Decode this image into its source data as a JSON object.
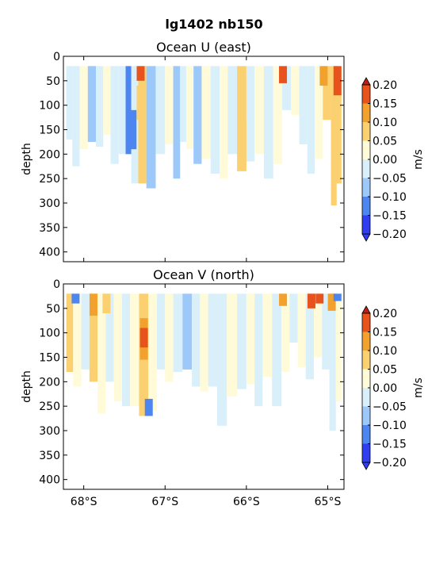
{
  "suptitle": "lg1402 nb150",
  "chart_data": [
    {
      "type": "heatmap",
      "title": "Ocean U (east)",
      "ylabel": "depth",
      "xlabel": "",
      "x_ticks": [
        -68,
        -67,
        -66,
        -65
      ],
      "x_tick_labels": [
        "68°S",
        "67°S",
        "66°S",
        "65°S"
      ],
      "y_ticks": [
        0,
        50,
        100,
        150,
        200,
        250,
        300,
        350,
        400
      ],
      "y_tick_labels": [
        "0",
        "50",
        "100",
        "150",
        "200",
        "250",
        "300",
        "350",
        "400"
      ],
      "xlim": [
        -68.25,
        -64.8
      ],
      "ylim": [
        420,
        0
      ],
      "colorbar": {
        "label": "m/s",
        "levels": [
          -0.2,
          -0.15,
          -0.1,
          -0.05,
          0.0,
          0.05,
          0.1,
          0.15,
          0.2
        ],
        "tick_labels": [
          "−0.20",
          "−0.15",
          "−0.10",
          "−0.05",
          "0.00",
          "0.05",
          "0.10",
          "0.15",
          "0.20"
        ],
        "colors": [
          "#2e3ef0",
          "#4d86f0",
          "#9cc8fa",
          "#d9f0fb",
          "#fffbd8",
          "#fbd070",
          "#f3a12e",
          "#e8521c",
          "#c01e10"
        ]
      },
      "columns": [
        {
          "lat": -68.18,
          "top": 20,
          "bottom": 170,
          "value": -0.03
        },
        {
          "lat": -68.1,
          "top": 20,
          "bottom": 225,
          "value": -0.04
        },
        {
          "lat": -68.0,
          "top": 20,
          "bottom": 190,
          "value": 0.02
        },
        {
          "lat": -67.9,
          "top": 20,
          "bottom": 175,
          "value": -0.07
        },
        {
          "lat": -67.8,
          "top": 20,
          "bottom": 185,
          "value": -0.04
        },
        {
          "lat": -67.72,
          "top": 20,
          "bottom": 160,
          "value": 0.03
        },
        {
          "lat": -67.62,
          "top": 20,
          "bottom": 220,
          "value": -0.03
        },
        {
          "lat": -67.52,
          "top": 20,
          "bottom": 200,
          "value": -0.04
        },
        {
          "lat": -67.45,
          "top": 20,
          "bottom": 200,
          "value": -0.13
        },
        {
          "lat": -67.38,
          "top": 20,
          "bottom": 260,
          "value": -0.04
        },
        {
          "lat": -67.28,
          "top": 20,
          "bottom": 260,
          "value": 0.06
        },
        {
          "lat": -67.18,
          "top": 20,
          "bottom": 270,
          "value": -0.07
        },
        {
          "lat": -67.05,
          "top": 20,
          "bottom": 200,
          "value": -0.03
        },
        {
          "lat": -66.95,
          "top": 20,
          "bottom": 180,
          "value": 0.02
        },
        {
          "lat": -66.85,
          "top": 20,
          "bottom": 250,
          "value": -0.07
        },
        {
          "lat": -66.78,
          "top": 20,
          "bottom": 175,
          "value": -0.04
        },
        {
          "lat": -66.7,
          "top": 20,
          "bottom": 190,
          "value": 0.02
        },
        {
          "lat": -66.6,
          "top": 20,
          "bottom": 220,
          "value": -0.08
        },
        {
          "lat": -66.5,
          "top": 20,
          "bottom": 210,
          "value": 0.03
        },
        {
          "lat": -66.38,
          "top": 20,
          "bottom": 240,
          "value": -0.04
        },
        {
          "lat": -66.28,
          "top": 20,
          "bottom": 250,
          "value": 0.03
        },
        {
          "lat": -66.18,
          "top": 20,
          "bottom": 200,
          "value": -0.02
        },
        {
          "lat": -66.05,
          "top": 20,
          "bottom": 235,
          "value": 0.07
        },
        {
          "lat": -65.95,
          "top": 20,
          "bottom": 215,
          "value": -0.04
        },
        {
          "lat": -65.85,
          "top": 20,
          "bottom": 200,
          "value": 0.03
        },
        {
          "lat": -65.72,
          "top": 20,
          "bottom": 250,
          "value": -0.04
        },
        {
          "lat": -65.62,
          "top": 20,
          "bottom": 220,
          "value": 0.02
        },
        {
          "lat": -65.5,
          "top": 20,
          "bottom": 110,
          "value": -0.03
        },
        {
          "lat": -65.4,
          "top": 20,
          "bottom": 120,
          "value": 0.03
        },
        {
          "lat": -65.3,
          "top": 20,
          "bottom": 180,
          "value": -0.04
        },
        {
          "lat": -65.2,
          "top": 20,
          "bottom": 240,
          "value": -0.02
        },
        {
          "lat": -65.12,
          "top": 20,
          "bottom": 210,
          "value": 0.04
        },
        {
          "lat": -65.0,
          "top": 20,
          "bottom": 130,
          "value": 0.07
        },
        {
          "lat": -64.92,
          "top": 20,
          "bottom": 305,
          "value": 0.06
        },
        {
          "lat": -64.86,
          "top": 20,
          "bottom": 260,
          "value": 0.03
        }
      ],
      "features": [
        {
          "lat": -67.4,
          "top": 110,
          "bottom": 190,
          "value": -0.14
        },
        {
          "lat": -67.3,
          "top": 60,
          "bottom": 130,
          "value": 0.09
        },
        {
          "lat": -67.3,
          "top": 20,
          "bottom": 50,
          "value": 0.18
        },
        {
          "lat": -66.05,
          "top": 130,
          "bottom": 230,
          "value": 0.09
        },
        {
          "lat": -65.55,
          "top": 20,
          "bottom": 55,
          "value": 0.15
        },
        {
          "lat": -65.05,
          "top": 20,
          "bottom": 60,
          "value": 0.12
        },
        {
          "lat": -64.88,
          "top": 20,
          "bottom": 80,
          "value": 0.17
        },
        {
          "lat": -64.88,
          "top": 80,
          "bottom": 260,
          "value": 0.08
        }
      ]
    },
    {
      "type": "heatmap",
      "title": "Ocean V (north)",
      "ylabel": "depth",
      "xlabel": "",
      "x_ticks": [
        -68,
        -67,
        -66,
        -65
      ],
      "x_tick_labels": [
        "68°S",
        "67°S",
        "66°S",
        "65°S"
      ],
      "y_ticks": [
        0,
        50,
        100,
        150,
        200,
        250,
        300,
        350,
        400
      ],
      "y_tick_labels": [
        "0",
        "50",
        "100",
        "150",
        "200",
        "250",
        "300",
        "350",
        "400"
      ],
      "xlim": [
        -68.25,
        -64.8
      ],
      "ylim": [
        420,
        0
      ],
      "colorbar": {
        "label": "m/s",
        "levels": [
          -0.2,
          -0.15,
          -0.1,
          -0.05,
          0.0,
          0.05,
          0.1,
          0.15,
          0.2
        ],
        "tick_labels": [
          "−0.20",
          "−0.15",
          "−0.10",
          "−0.05",
          "0.00",
          "0.05",
          "0.10",
          "0.15",
          "0.20"
        ],
        "colors": [
          "#2e3ef0",
          "#4d86f0",
          "#9cc8fa",
          "#d9f0fb",
          "#fffbd8",
          "#fbd070",
          "#f3a12e",
          "#e8521c",
          "#c01e10"
        ]
      },
      "columns": [
        {
          "lat": -68.18,
          "top": 20,
          "bottom": 180,
          "value": 0.06
        },
        {
          "lat": -68.08,
          "top": 20,
          "bottom": 210,
          "value": 0.03
        },
        {
          "lat": -67.98,
          "top": 20,
          "bottom": 175,
          "value": -0.04
        },
        {
          "lat": -67.88,
          "top": 20,
          "bottom": 200,
          "value": 0.08
        },
        {
          "lat": -67.78,
          "top": 20,
          "bottom": 265,
          "value": 0.03
        },
        {
          "lat": -67.68,
          "top": 20,
          "bottom": 200,
          "value": -0.04
        },
        {
          "lat": -67.58,
          "top": 20,
          "bottom": 240,
          "value": 0.02
        },
        {
          "lat": -67.48,
          "top": 20,
          "bottom": 250,
          "value": -0.04
        },
        {
          "lat": -67.38,
          "top": 20,
          "bottom": 250,
          "value": 0.04
        },
        {
          "lat": -67.26,
          "top": 20,
          "bottom": 270,
          "value": 0.09
        },
        {
          "lat": -67.15,
          "top": 20,
          "bottom": 260,
          "value": 0.03
        },
        {
          "lat": -67.05,
          "top": 20,
          "bottom": 175,
          "value": -0.03
        },
        {
          "lat": -66.95,
          "top": 20,
          "bottom": 200,
          "value": 0.03
        },
        {
          "lat": -66.85,
          "top": 20,
          "bottom": 180,
          "value": -0.04
        },
        {
          "lat": -66.72,
          "top": 20,
          "bottom": 175,
          "value": -0.07
        },
        {
          "lat": -66.62,
          "top": 20,
          "bottom": 210,
          "value": -0.04
        },
        {
          "lat": -66.52,
          "top": 20,
          "bottom": 220,
          "value": 0.03
        },
        {
          "lat": -66.42,
          "top": 20,
          "bottom": 210,
          "value": -0.03
        },
        {
          "lat": -66.3,
          "top": 20,
          "bottom": 290,
          "value": -0.04
        },
        {
          "lat": -66.18,
          "top": 20,
          "bottom": 230,
          "value": 0.02
        },
        {
          "lat": -66.05,
          "top": 20,
          "bottom": 215,
          "value": -0.04
        },
        {
          "lat": -65.95,
          "top": 20,
          "bottom": 205,
          "value": 0.04
        },
        {
          "lat": -65.85,
          "top": 20,
          "bottom": 250,
          "value": -0.03
        },
        {
          "lat": -65.75,
          "top": 20,
          "bottom": 190,
          "value": 0.03
        },
        {
          "lat": -65.62,
          "top": 20,
          "bottom": 250,
          "value": -0.04
        },
        {
          "lat": -65.52,
          "top": 20,
          "bottom": 180,
          "value": 0.03
        },
        {
          "lat": -65.42,
          "top": 20,
          "bottom": 120,
          "value": -0.03
        },
        {
          "lat": -65.32,
          "top": 20,
          "bottom": 170,
          "value": 0.03
        },
        {
          "lat": -65.22,
          "top": 20,
          "bottom": 195,
          "value": -0.04
        },
        {
          "lat": -65.12,
          "top": 20,
          "bottom": 150,
          "value": 0.04
        },
        {
          "lat": -65.02,
          "top": 20,
          "bottom": 175,
          "value": -0.03
        },
        {
          "lat": -64.94,
          "top": 20,
          "bottom": 300,
          "value": -0.04
        },
        {
          "lat": -64.86,
          "top": 20,
          "bottom": 240,
          "value": 0.03
        }
      ],
      "features": [
        {
          "lat": -68.1,
          "top": 20,
          "bottom": 40,
          "value": -0.14
        },
        {
          "lat": -67.88,
          "top": 20,
          "bottom": 65,
          "value": 0.13
        },
        {
          "lat": -67.72,
          "top": 20,
          "bottom": 60,
          "value": 0.08
        },
        {
          "lat": -67.26,
          "top": 70,
          "bottom": 155,
          "value": 0.12
        },
        {
          "lat": -67.26,
          "top": 90,
          "bottom": 130,
          "value": 0.17
        },
        {
          "lat": -67.2,
          "top": 235,
          "bottom": 270,
          "value": -0.12
        },
        {
          "lat": -65.55,
          "top": 20,
          "bottom": 45,
          "value": 0.12
        },
        {
          "lat": -65.2,
          "top": 20,
          "bottom": 50,
          "value": 0.15
        },
        {
          "lat": -65.1,
          "top": 20,
          "bottom": 40,
          "value": 0.18
        },
        {
          "lat": -64.95,
          "top": 20,
          "bottom": 55,
          "value": 0.14
        },
        {
          "lat": -64.88,
          "top": 20,
          "bottom": 35,
          "value": -0.14
        }
      ]
    }
  ]
}
